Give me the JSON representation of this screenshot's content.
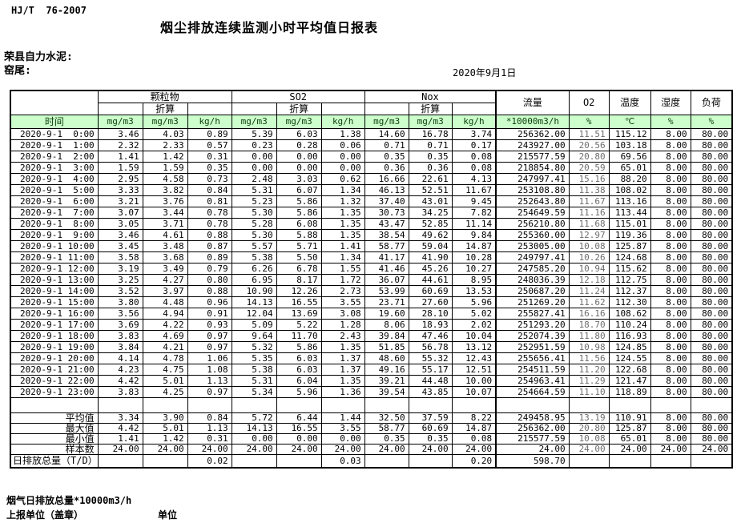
{
  "meta": {
    "standard": "HJ/T  76-2007",
    "title": "烟尘排放连续监测小时平均值日报表",
    "company": "荣县自力水泥:",
    "position": "窑尾:",
    "date": "2020年9月1日"
  },
  "table": {
    "groups": {
      "pm": "颗粒物",
      "so2": "SO2",
      "nox": "Nox",
      "flow": "流量",
      "o2": "O2",
      "temp": "温度",
      "humidity": "湿度",
      "load": "负荷"
    },
    "labels": {
      "converted": "折算"
    },
    "units": {
      "time": "时间",
      "mgm3": "mg/m3",
      "kgh": "kg/h",
      "flow": "*10000m3/h",
      "percent": "%",
      "celsius": "℃"
    },
    "rows": [
      [
        "2020-9-1  0:00",
        "3.46",
        "4.03",
        "0.89",
        "5.39",
        "6.03",
        "1.38",
        "14.60",
        "16.78",
        "3.74",
        "256362.00",
        "11.51",
        "115.12",
        "8.00",
        "80.00"
      ],
      [
        "2020-9-1  1:00",
        "2.32",
        "2.33",
        "0.57",
        "0.23",
        "0.28",
        "0.06",
        "0.71",
        "0.71",
        "0.17",
        "243927.00",
        "20.56",
        "103.18",
        "8.00",
        "80.00"
      ],
      [
        "2020-9-1  2:00",
        "1.41",
        "1.42",
        "0.31",
        "0.00",
        "0.00",
        "0.00",
        "0.35",
        "0.35",
        "0.08",
        "215577.59",
        "20.80",
        "69.56",
        "8.00",
        "80.00"
      ],
      [
        "2020-9-1  3:00",
        "1.59",
        "1.59",
        "0.35",
        "0.00",
        "0.00",
        "0.00",
        "0.36",
        "0.36",
        "0.08",
        "218854.80",
        "20.59",
        "65.01",
        "8.00",
        "80.00"
      ],
      [
        "2020-9-1  4:00",
        "2.95",
        "4.58",
        "0.73",
        "2.48",
        "3.03",
        "0.62",
        "16.66",
        "22.61",
        "4.13",
        "247997.41",
        "15.16",
        "88.20",
        "8.00",
        "80.00"
      ],
      [
        "2020-9-1  5:00",
        "3.33",
        "3.82",
        "0.84",
        "5.31",
        "6.07",
        "1.34",
        "46.13",
        "52.51",
        "11.67",
        "253108.80",
        "11.38",
        "108.02",
        "8.00",
        "80.00"
      ],
      [
        "2020-9-1  6:00",
        "3.21",
        "3.76",
        "0.81",
        "5.23",
        "5.86",
        "1.32",
        "37.40",
        "43.01",
        "9.45",
        "252643.80",
        "11.67",
        "113.16",
        "8.00",
        "80.00"
      ],
      [
        "2020-9-1  7:00",
        "3.07",
        "3.44",
        "0.78",
        "5.30",
        "5.86",
        "1.35",
        "30.73",
        "34.25",
        "7.82",
        "254649.59",
        "11.16",
        "113.44",
        "8.00",
        "80.00"
      ],
      [
        "2020-9-1  8:00",
        "3.05",
        "3.71",
        "0.78",
        "5.28",
        "6.08",
        "1.35",
        "43.47",
        "52.85",
        "11.14",
        "256210.80",
        "11.68",
        "115.01",
        "8.00",
        "80.00"
      ],
      [
        "2020-9-1  9:00",
        "3.46",
        "4.61",
        "0.88",
        "5.30",
        "5.88",
        "1.35",
        "38.54",
        "49.62",
        "9.84",
        "255360.00",
        "12.97",
        "119.36",
        "8.00",
        "80.00"
      ],
      [
        "2020-9-1 10:00",
        "3.45",
        "3.48",
        "0.87",
        "5.57",
        "5.71",
        "1.41",
        "58.77",
        "59.04",
        "14.87",
        "253005.00",
        "10.08",
        "125.87",
        "8.00",
        "80.00"
      ],
      [
        "2020-9-1 11:00",
        "3.58",
        "3.68",
        "0.89",
        "5.38",
        "5.50",
        "1.34",
        "41.17",
        "41.90",
        "10.28",
        "249797.41",
        "10.26",
        "124.68",
        "8.00",
        "80.00"
      ],
      [
        "2020-9-1 12:00",
        "3.19",
        "3.49",
        "0.79",
        "6.26",
        "6.78",
        "1.55",
        "41.46",
        "45.26",
        "10.27",
        "247585.20",
        "10.94",
        "115.62",
        "8.00",
        "80.00"
      ],
      [
        "2020-9-1 13:00",
        "3.25",
        "4.27",
        "0.80",
        "6.95",
        "8.17",
        "1.72",
        "36.07",
        "44.61",
        "8.95",
        "248036.39",
        "12.18",
        "112.75",
        "8.00",
        "80.00"
      ],
      [
        "2020-9-1 14:00",
        "3.52",
        "3.97",
        "0.88",
        "10.90",
        "12.26",
        "2.73",
        "53.99",
        "60.69",
        "13.53",
        "250687.20",
        "11.24",
        "112.37",
        "8.00",
        "80.00"
      ],
      [
        "2020-9-1 15:00",
        "3.80",
        "4.48",
        "0.96",
        "14.13",
        "16.55",
        "3.55",
        "23.71",
        "27.60",
        "5.96",
        "251269.20",
        "11.62",
        "112.30",
        "8.00",
        "80.00"
      ],
      [
        "2020-9-1 16:00",
        "3.56",
        "4.94",
        "0.91",
        "12.04",
        "13.69",
        "3.08",
        "19.60",
        "28.10",
        "5.02",
        "255827.41",
        "16.16",
        "108.62",
        "8.00",
        "80.00"
      ],
      [
        "2020-9-1 17:00",
        "3.69",
        "4.22",
        "0.93",
        "5.09",
        "5.22",
        "1.28",
        "8.06",
        "18.93",
        "2.02",
        "251293.20",
        "18.70",
        "110.24",
        "8.00",
        "80.00"
      ],
      [
        "2020-9-1 18:00",
        "3.83",
        "4.69",
        "0.97",
        "9.64",
        "11.70",
        "2.43",
        "39.84",
        "47.46",
        "10.04",
        "252074.39",
        "11.80",
        "116.93",
        "8.00",
        "80.00"
      ],
      [
        "2020-9-1 19:00",
        "3.84",
        "4.21",
        "0.97",
        "5.32",
        "5.86",
        "1.35",
        "51.85",
        "56.78",
        "13.12",
        "252951.59",
        "10.98",
        "124.85",
        "8.00",
        "80.00"
      ],
      [
        "2020-9-1 20:00",
        "4.14",
        "4.78",
        "1.06",
        "5.35",
        "6.03",
        "1.37",
        "48.60",
        "55.32",
        "12.43",
        "255656.41",
        "11.56",
        "124.55",
        "8.00",
        "80.00"
      ],
      [
        "2020-9-1 21:00",
        "4.23",
        "4.75",
        "1.08",
        "5.38",
        "6.03",
        "1.37",
        "49.16",
        "55.17",
        "12.51",
        "254511.59",
        "11.20",
        "122.68",
        "8.00",
        "80.00"
      ],
      [
        "2020-9-1 22:00",
        "4.42",
        "5.01",
        "1.13",
        "5.31",
        "6.04",
        "1.35",
        "39.21",
        "44.48",
        "10.00",
        "254963.41",
        "11.29",
        "121.47",
        "8.00",
        "80.00"
      ],
      [
        "2020-9-1 23:00",
        "3.83",
        "4.25",
        "0.97",
        "5.34",
        "5.96",
        "1.36",
        "39.54",
        "43.85",
        "10.07",
        "254664.59",
        "11.10",
        "118.89",
        "8.00",
        "80.00"
      ]
    ],
    "summary": [
      [
        "平均值",
        "3.34",
        "3.90",
        "0.84",
        "5.72",
        "6.44",
        "1.44",
        "32.50",
        "37.59",
        "8.22",
        "249458.95",
        "13.19",
        "110.91",
        "8.00",
        "80.00"
      ],
      [
        "最大值",
        "4.42",
        "5.01",
        "1.13",
        "14.13",
        "16.55",
        "3.55",
        "58.77",
        "60.69",
        "14.87",
        "256362.00",
        "20.80",
        "125.87",
        "8.00",
        "80.00"
      ],
      [
        "最小值",
        "1.41",
        "1.42",
        "0.31",
        "0.00",
        "0.00",
        "0.00",
        "0.35",
        "0.35",
        "0.08",
        "215577.59",
        "10.08",
        "65.01",
        "8.00",
        "80.00"
      ],
      [
        "样本数",
        "24.00",
        "24.00",
        "24.00",
        "24.00",
        "24.00",
        "24.00",
        "24.00",
        "24.00",
        "24.00",
        "24.00",
        "24.00",
        "24.00",
        "24.00",
        "24.00"
      ]
    ],
    "total": [
      "日排放总量（T/D）",
      "",
      "",
      "0.02",
      "",
      "",
      "0.03",
      "",
      "",
      "0.20",
      "598.70",
      "",
      "",
      "",
      ""
    ]
  },
  "footer": {
    "line1": "烟气日排放总量*10000m3/h",
    "line2": "上报单位（盖章）",
    "unit_label": "单位"
  }
}
